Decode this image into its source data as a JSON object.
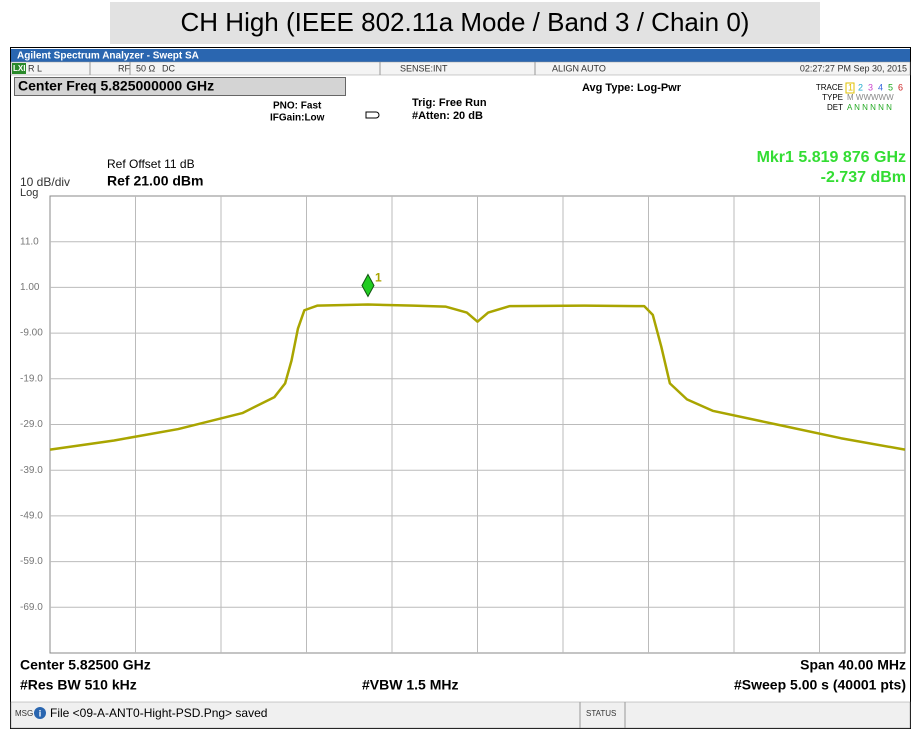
{
  "header": {
    "title": "CH High (IEEE 802.11a Mode / Band 3 / Chain 0)"
  },
  "instrument": {
    "window_title": "Agilent Spectrum Analyzer - Swept SA",
    "status_bar": {
      "lxi": "LXI",
      "rl": "R L",
      "rf": "RF",
      "impedance": "50 Ω",
      "coupling": "DC",
      "sense": "SENSE:INT",
      "align": "ALIGN AUTO",
      "time": "02:27:27 PM Sep 30, 2015"
    },
    "center_freq": "Center Freq 5.825000000 GHz",
    "pno": "PNO: Fast",
    "ifgain": "IFGain:Low",
    "trig": "Trig: Free Run",
    "atten": "#Atten: 20 dB",
    "avg_type": "Avg Type: Log-Pwr",
    "trace_label": "TRACE",
    "trace_numbers": [
      "1",
      "2",
      "3",
      "4",
      "5",
      "6"
    ],
    "type_label": "TYPE",
    "type_value": "M WWWWW",
    "det_label": "DET",
    "det_value": "A N N N N N",
    "ref_offset": "Ref Offset 11 dB",
    "scale": "10 dB/div",
    "ref_level": "Ref 21.00 dBm",
    "scale_type": "Log",
    "marker_freq": "Mkr1 5.819 876 GHz",
    "marker_level": "-2.737 dBm",
    "center": "Center 5.82500 GHz",
    "span": "Span 40.00 MHz",
    "rbw": "#Res BW 510 kHz",
    "vbw": "#VBW 1.5 MHz",
    "sweep": "#Sweep  5.00 s (40001 pts)",
    "msg_label": "MSG",
    "message": "File <09-A-ANT0-Hight-PSD.Png> saved",
    "status_label": "STATUS"
  },
  "chart_data": {
    "type": "line",
    "x": [
      5.805,
      5.808,
      5.811,
      5.814,
      5.8155,
      5.816,
      5.8163,
      5.8166,
      5.8169,
      5.8175,
      5.819876,
      5.822,
      5.8235,
      5.8245,
      5.825,
      5.8255,
      5.8265,
      5.83,
      5.8328,
      5.8332,
      5.8336,
      5.834,
      5.8348,
      5.836,
      5.839,
      5.842,
      5.845
    ],
    "series": [
      {
        "color": "#a9a500",
        "values": [
          -34.5,
          -32.5,
          -30,
          -26.5,
          -23,
          -20,
          -15,
          -8,
          -4,
          -3.0,
          -2.737,
          -3.0,
          -3.2,
          -4.5,
          -6.5,
          -4.5,
          -3.1,
          -3.0,
          -3.1,
          -5,
          -12,
          -20,
          -23.5,
          -26,
          -29,
          -32,
          -34.5
        ]
      }
    ],
    "marker": {
      "label": "1",
      "x": 5.819876,
      "y": -2.737,
      "color": "#22cc22"
    },
    "xlim": [
      5.805,
      5.845
    ],
    "xticks": [
      5.809,
      5.813,
      5.817,
      5.821,
      5.825,
      5.829,
      5.833,
      5.837,
      5.841
    ],
    "ylim": [
      -79,
      21
    ],
    "yticks": [
      {
        "value": 11,
        "label": "11.0"
      },
      {
        "value": 1,
        "label": "1.00"
      },
      {
        "value": -9,
        "label": "-9.00"
      },
      {
        "value": -19,
        "label": "-19.0"
      },
      {
        "value": -29,
        "label": "-29.0"
      },
      {
        "value": -39,
        "label": "-39.0"
      },
      {
        "value": -49,
        "label": "-49.0"
      },
      {
        "value": -59,
        "label": "-59.0"
      },
      {
        "value": -69,
        "label": "-69.0"
      }
    ],
    "grid": true
  }
}
